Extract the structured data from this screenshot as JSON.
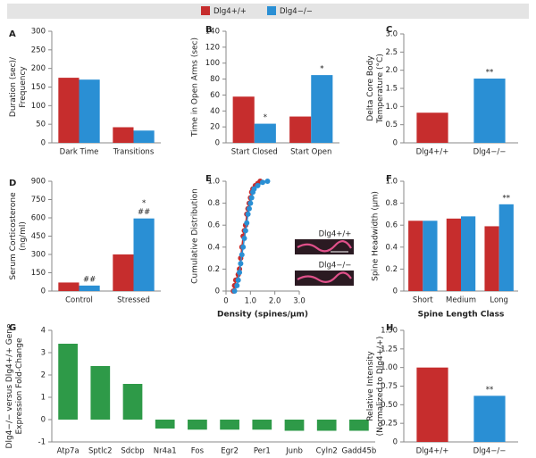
{
  "legend": [
    {
      "name": "Dlg4+/+",
      "color": "#c62d2d"
    },
    {
      "name": "Dlg4−/−",
      "color": "#2a8fd4"
    }
  ],
  "chart_data": [
    {
      "type": "bar",
      "label": "A",
      "ylabel": [
        "Duration (sec)/",
        "Frequency"
      ],
      "categories": [
        "Dark Time",
        "Transitions"
      ],
      "series": [
        {
          "name": "Dlg4+/+",
          "color": "#c62d2d",
          "values": [
            175,
            42
          ]
        },
        {
          "name": "Dlg4−/−",
          "color": "#2a8fd4",
          "values": [
            170,
            33
          ]
        }
      ],
      "ylim": [
        0,
        300
      ],
      "yticks": [
        0,
        50,
        100,
        150,
        200,
        250,
        300
      ]
    },
    {
      "type": "bar",
      "label": "B",
      "ylabel": [
        "Time in Open Arms (sec)"
      ],
      "categories": [
        "Start Closed",
        "Start Open"
      ],
      "series": [
        {
          "name": "Dlg4+/+",
          "color": "#c62d2d",
          "values": [
            58,
            33
          ]
        },
        {
          "name": "Dlg4−/−",
          "color": "#2a8fd4",
          "values": [
            24,
            85
          ],
          "annotations": [
            "*",
            "*"
          ]
        }
      ],
      "ylim": [
        0,
        140
      ],
      "yticks": [
        0,
        20,
        40,
        60,
        80,
        100,
        120,
        140
      ]
    },
    {
      "type": "bar",
      "label": "C",
      "ylabel": [
        "Delta Core Body",
        "Temperature (°C)"
      ],
      "categories": [
        "Dlg4+/+",
        "Dlg4−/−"
      ],
      "values": [
        0.83,
        1.77
      ],
      "colors": [
        "#c62d2d",
        "#2a8fd4"
      ],
      "annotations": [
        null,
        "**"
      ],
      "ylim": [
        0,
        3.0
      ],
      "yticks": [
        0,
        0.5,
        {
          "value": 1,
          "label": "1.0"
        },
        1.5,
        {
          "value": 2,
          "label": "2.0"
        },
        2.5,
        {
          "value": 3,
          "label": "3.0"
        }
      ]
    },
    {
      "type": "bar",
      "label": "D",
      "ylabel": [
        "Serum Corticosterone",
        "(ng/ml)"
      ],
      "categories": [
        "Control",
        "Stressed"
      ],
      "series": [
        {
          "name": "Dlg4+/+",
          "color": "#c62d2d",
          "values": [
            70,
            300
          ]
        },
        {
          "name": "Dlg4−/−",
          "color": "#2a8fd4",
          "values": [
            45,
            595
          ],
          "annotations": [
            "##",
            "##"
          ],
          "annotations2": [
            null,
            "*"
          ]
        }
      ],
      "ylim": [
        0,
        900
      ],
      "yticks": [
        0,
        150,
        300,
        450,
        600,
        750,
        900
      ]
    },
    {
      "type": "line",
      "label": "E",
      "ylabel": [
        "Cumulative Distribution"
      ],
      "xlabel": "Density (spines/µm)",
      "series": [
        {
          "name": "Dlg4+/+",
          "color": "#c62d2d",
          "x": [
            0.3,
            0.35,
            0.4,
            0.5,
            0.55,
            0.6,
            0.65,
            0.7,
            0.75,
            0.8,
            0.85,
            0.9,
            0.95,
            1.0,
            1.05,
            1.1,
            1.2,
            1.3,
            1.4
          ],
          "values": [
            0,
            0.05,
            0.1,
            0.15,
            0.2,
            0.3,
            0.4,
            0.5,
            0.55,
            0.6,
            0.7,
            0.75,
            0.8,
            0.85,
            0.9,
            0.93,
            0.96,
            0.98,
            1.0
          ]
        },
        {
          "name": "Dlg4−/−",
          "color": "#2a8fd4",
          "x": [
            0.35,
            0.45,
            0.5,
            0.55,
            0.6,
            0.65,
            0.7,
            0.75,
            0.8,
            0.85,
            0.9,
            0.95,
            1.0,
            1.05,
            1.1,
            1.15,
            1.3,
            1.5,
            1.7
          ],
          "values": [
            0,
            0.05,
            0.1,
            0.17,
            0.25,
            0.33,
            0.4,
            0.48,
            0.55,
            0.62,
            0.7,
            0.75,
            0.8,
            0.85,
            0.9,
            0.93,
            0.96,
            0.99,
            1.0
          ]
        }
      ],
      "inset_labels": [
        "Dlg4+/+",
        "Dlg4−/−"
      ],
      "xlim": [
        0,
        3.0
      ],
      "xticks": [
        0,
        {
          "value": 1,
          "label": "1.0"
        },
        {
          "value": 2,
          "label": "2.0"
        },
        {
          "value": 3,
          "label": "3.0"
        }
      ],
      "ylim": [
        0,
        1.0
      ],
      "yticks": [
        0,
        0.2,
        0.4,
        0.6,
        0.8,
        {
          "value": 1,
          "label": "1.0"
        }
      ]
    },
    {
      "type": "bar",
      "label": "F",
      "ylabel": [
        "Spine Headwidth (µm)"
      ],
      "xlabel": "Spine Length Class",
      "categories": [
        "Short",
        "Medium",
        "Long"
      ],
      "series": [
        {
          "name": "Dlg4+/+",
          "color": "#c62d2d",
          "values": [
            0.64,
            0.66,
            0.59
          ]
        },
        {
          "name": "Dlg4−/−",
          "color": "#2a8fd4",
          "values": [
            0.64,
            0.68,
            0.79
          ],
          "annotations": [
            null,
            null,
            "**"
          ]
        }
      ],
      "ylim": [
        0,
        1.0
      ],
      "yticks": [
        0,
        0.2,
        0.4,
        0.6,
        0.8,
        {
          "value": 1,
          "label": "1.0"
        }
      ]
    },
    {
      "type": "bar",
      "label": "G",
      "ylabel": [
        "Dlg4−/− versus Dlg4+/+ Gene",
        "Expression Fold-Change"
      ],
      "categories": [
        "Atp7a",
        "Sptlc2",
        "Sdcbp",
        "Nr4a1",
        "Fos",
        "Egr2",
        "Per1",
        "Junb",
        "Cyln2",
        "Gadd45b"
      ],
      "values": [
        3.4,
        2.4,
        1.6,
        -0.4,
        -0.45,
        -0.45,
        -0.45,
        -0.5,
        -0.5,
        -0.5
      ],
      "color": "#2e9a48",
      "ylim": [
        -1,
        4
      ],
      "yticks": [
        -1,
        0,
        1,
        2,
        3,
        4
      ]
    },
    {
      "type": "bar",
      "label": "H",
      "ylabel": [
        "Relative Intensity",
        "(Normalized to Dlg4+/+)"
      ],
      "categories": [
        "Dlg4+/+",
        "Dlg4−/−"
      ],
      "values": [
        1.0,
        0.62
      ],
      "colors": [
        "#c62d2d",
        "#2a8fd4"
      ],
      "annotations": [
        null,
        "**"
      ],
      "ylim": [
        0,
        1.5
      ],
      "yticks": [
        0,
        0.25,
        {
          "value": 0.5,
          "label": "0.50"
        },
        0.75,
        {
          "value": 1,
          "label": "1.00"
        },
        1.25,
        {
          "value": 1.5,
          "label": "1.50"
        }
      ]
    }
  ]
}
